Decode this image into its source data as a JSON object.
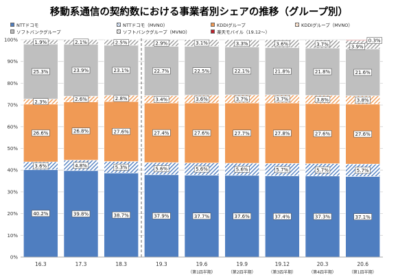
{
  "title": "移動系通信の契約数における事業者別シェアの推移（グループ別）",
  "colors": {
    "ntt": "#4f7ec0",
    "ntt_mvno_hatch": "#4f7ec0",
    "kddi": "#f09a55",
    "kddi_mvno_hatch": "#f09a55",
    "softbank": "#bfbfbf",
    "softbank_mvno_hatch": "#9a9a9a",
    "rakuten": "#c0202a",
    "grid": "#d0d0d0",
    "axis_text": "#333333"
  },
  "chart_data": {
    "type": "bar",
    "stacked": true,
    "title": "移動系通信の契約数における事業者別シェアの推移（グループ別）",
    "xlabel": "",
    "ylabel": "",
    "ylim": [
      0,
      100
    ],
    "yticks": [
      "0%",
      "10%",
      "20%",
      "30%",
      "40%",
      "50%",
      "60%",
      "70%",
      "80%",
      "90%",
      "100%"
    ],
    "grid": true,
    "legend_position": "top",
    "categories": [
      "16.3",
      "17.3",
      "18.3",
      "19.3",
      "19.6",
      "19.9",
      "19.12",
      "20.3",
      "20.6"
    ],
    "category_sublabels": [
      "",
      "",
      "",
      "",
      "（第1四半期）",
      "（第2四半期）",
      "（第3四半期）",
      "（第4四半期）",
      "（第1四半期）"
    ],
    "divider_after_index": 2,
    "series": [
      {
        "name": "NTTドコモ",
        "key": "ntt",
        "pattern": "solid",
        "values": [
          40.2,
          39.8,
          38.7,
          37.9,
          37.7,
          37.6,
          37.4,
          37.3,
          37.1
        ],
        "labels": [
          "40.2%",
          "39.8%",
          "38.7%",
          "37.9%",
          "37.7%",
          "37.6%",
          "37.4%",
          "37.3%",
          "37.1%"
        ]
      },
      {
        "name": "NTTドコモ（MVNO）",
        "key": "ntt_mvno_hatch",
        "pattern": "hatch",
        "values": [
          3.6,
          4.8,
          5.3,
          5.6,
          5.6,
          5.6,
          5.7,
          5.7,
          5.7
        ],
        "labels": [
          "3.6%",
          "4.8%",
          "5.3%",
          "5.6%",
          "5.6%",
          "5.6%",
          "5.7%",
          "5.7%",
          "5.7%"
        ]
      },
      {
        "name": "KDDIグループ",
        "key": "kddi",
        "pattern": "solid",
        "values": [
          26.6,
          26.8,
          27.6,
          27.4,
          27.6,
          27.7,
          27.8,
          27.6,
          27.6
        ],
        "labels": [
          "26.6%",
          "26.8%",
          "27.6%",
          "27.4%",
          "27.6%",
          "27.7%",
          "27.8%",
          "27.6%",
          "27.6%"
        ]
      },
      {
        "name": "KDDIグループ（MVNO）",
        "key": "kddi_mvno_hatch",
        "pattern": "hatch",
        "values": [
          2.3,
          2.6,
          2.8,
          3.4,
          3.6,
          3.7,
          3.7,
          3.8,
          3.8
        ],
        "labels": [
          "2.3%",
          "2.6%",
          "2.8%",
          "3.4%",
          "3.6%",
          "3.7%",
          "3.7%",
          "3.8%",
          "3.8%"
        ]
      },
      {
        "name": "ソフトバンクグループ",
        "key": "softbank",
        "pattern": "solid",
        "values": [
          25.3,
          23.9,
          23.1,
          22.7,
          22.5,
          22.1,
          21.8,
          21.8,
          21.6
        ],
        "labels": [
          "25.3%",
          "23.9%",
          "23.1%",
          "22.7%",
          "22.5%",
          "22.1%",
          "21.8%",
          "21.8%",
          "21.6%"
        ]
      },
      {
        "name": "ソフトバンクグループ（MVNO）",
        "key": "softbank_mvno_hatch",
        "pattern": "hatch",
        "values": [
          1.9,
          2.1,
          2.5,
          2.9,
          3.1,
          3.3,
          3.6,
          3.7,
          3.9
        ],
        "labels": [
          "1.9%",
          "2.1%",
          "2.5%",
          "2.9%",
          "3.1%",
          "3.3%",
          "3.6%",
          "3.7%",
          "3.9%"
        ]
      },
      {
        "name": "楽天モバイル（19.12～）",
        "key": "rakuten",
        "pattern": "solid",
        "values": [
          0,
          0,
          0,
          0,
          0,
          0,
          0,
          0,
          0.3
        ],
        "labels": [
          "",
          "",
          "",
          "",
          "",
          "",
          "",
          "",
          "0.3%"
        ]
      }
    ]
  }
}
